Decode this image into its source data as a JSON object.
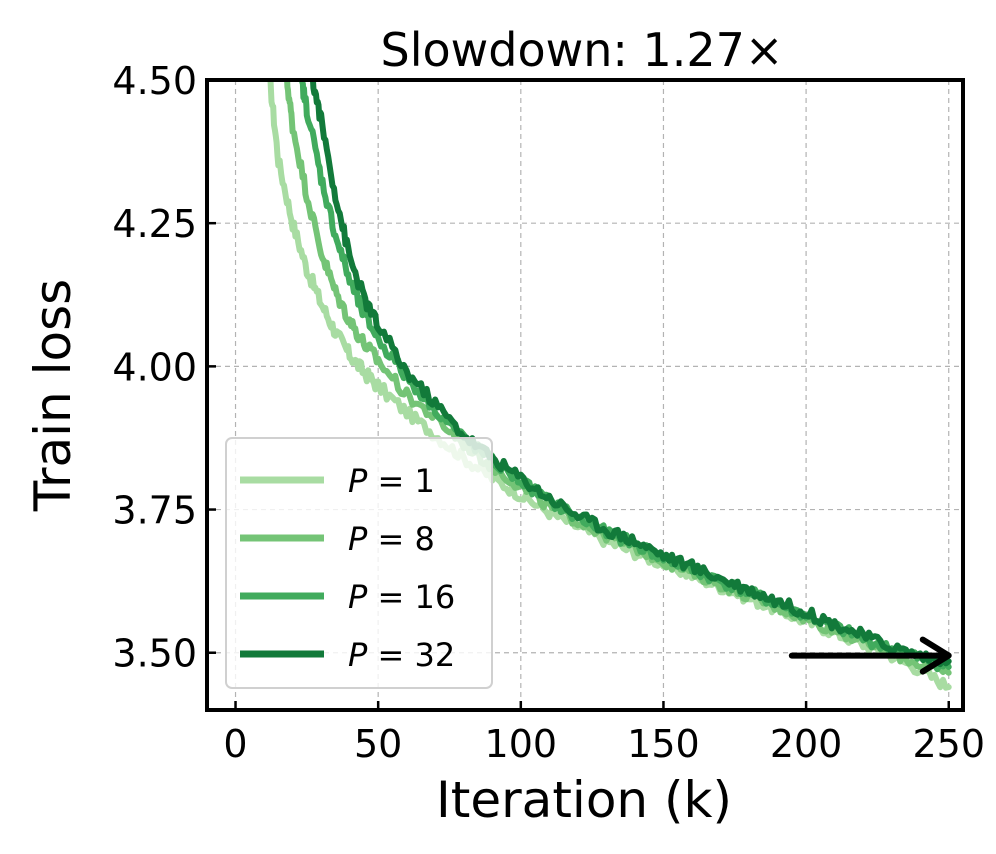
{
  "chart_data": {
    "type": "line",
    "title": "Slowdown: 1.27×",
    "xlabel": "Iteration (k)",
    "ylabel": "Train loss",
    "xlim": [
      -10,
      255
    ],
    "ylim": [
      3.4,
      4.5
    ],
    "xticks": [
      0,
      50,
      100,
      150,
      200,
      250
    ],
    "yticks": [
      3.5,
      3.75,
      4.0,
      4.25,
      4.5
    ],
    "ytick_labels": [
      "3.50",
      "3.75",
      "4.00",
      "4.25",
      "4.50"
    ],
    "grid": true,
    "legend_position": "lower-left",
    "series": [
      {
        "name": "P = 1",
        "legend_var": "P",
        "legend_value": "1",
        "color": "#a8dca2",
        "points": [
          [
            12,
            4.5
          ],
          [
            15,
            4.36
          ],
          [
            20,
            4.25
          ],
          [
            25,
            4.17
          ],
          [
            30,
            4.11
          ],
          [
            35,
            4.06
          ],
          [
            40,
            4.02
          ],
          [
            45,
            3.99
          ],
          [
            50,
            3.965
          ],
          [
            60,
            3.92
          ],
          [
            70,
            3.88
          ],
          [
            80,
            3.84
          ],
          [
            90,
            3.805
          ],
          [
            100,
            3.775
          ],
          [
            110,
            3.745
          ],
          [
            120,
            3.72
          ],
          [
            130,
            3.695
          ],
          [
            140,
            3.675
          ],
          [
            150,
            3.655
          ],
          [
            160,
            3.635
          ],
          [
            170,
            3.615
          ],
          [
            180,
            3.595
          ],
          [
            190,
            3.575
          ],
          [
            200,
            3.555
          ],
          [
            210,
            3.535
          ],
          [
            220,
            3.515
          ],
          [
            230,
            3.495
          ],
          [
            240,
            3.47
          ],
          [
            250,
            3.44
          ]
        ]
      },
      {
        "name": "P = 8",
        "legend_var": "P",
        "legend_value": "8",
        "color": "#74c476",
        "points": [
          [
            18,
            4.5
          ],
          [
            20,
            4.42
          ],
          [
            25,
            4.3
          ],
          [
            30,
            4.2
          ],
          [
            35,
            4.13
          ],
          [
            40,
            4.08
          ],
          [
            45,
            4.04
          ],
          [
            50,
            4.01
          ],
          [
            60,
            3.95
          ],
          [
            70,
            3.91
          ],
          [
            80,
            3.865
          ],
          [
            90,
            3.825
          ],
          [
            100,
            3.79
          ],
          [
            110,
            3.755
          ],
          [
            120,
            3.73
          ],
          [
            130,
            3.705
          ],
          [
            140,
            3.685
          ],
          [
            150,
            3.66
          ],
          [
            160,
            3.64
          ],
          [
            170,
            3.62
          ],
          [
            180,
            3.6
          ],
          [
            190,
            3.58
          ],
          [
            200,
            3.56
          ],
          [
            210,
            3.54
          ],
          [
            220,
            3.52
          ],
          [
            230,
            3.5
          ],
          [
            240,
            3.48
          ],
          [
            250,
            3.465
          ]
        ]
      },
      {
        "name": "P = 16",
        "legend_var": "P",
        "legend_value": "16",
        "color": "#41ab5d",
        "points": [
          [
            23,
            4.5
          ],
          [
            25,
            4.45
          ],
          [
            30,
            4.33
          ],
          [
            35,
            4.23
          ],
          [
            40,
            4.15
          ],
          [
            45,
            4.09
          ],
          [
            50,
            4.05
          ],
          [
            60,
            3.98
          ],
          [
            70,
            3.925
          ],
          [
            80,
            3.875
          ],
          [
            90,
            3.835
          ],
          [
            100,
            3.8
          ],
          [
            110,
            3.765
          ],
          [
            120,
            3.735
          ],
          [
            130,
            3.71
          ],
          [
            140,
            3.69
          ],
          [
            150,
            3.665
          ],
          [
            160,
            3.645
          ],
          [
            170,
            3.625
          ],
          [
            180,
            3.605
          ],
          [
            190,
            3.585
          ],
          [
            200,
            3.565
          ],
          [
            210,
            3.545
          ],
          [
            220,
            3.525
          ],
          [
            230,
            3.505
          ],
          [
            240,
            3.49
          ],
          [
            250,
            3.475
          ]
        ]
      },
      {
        "name": "P = 32",
        "legend_var": "P",
        "legend_value": "32",
        "color": "#127a3a",
        "points": [
          [
            27,
            4.5
          ],
          [
            30,
            4.43
          ],
          [
            35,
            4.3
          ],
          [
            40,
            4.19
          ],
          [
            45,
            4.12
          ],
          [
            50,
            4.07
          ],
          [
            60,
            3.99
          ],
          [
            70,
            3.935
          ],
          [
            80,
            3.88
          ],
          [
            90,
            3.84
          ],
          [
            100,
            3.805
          ],
          [
            110,
            3.77
          ],
          [
            120,
            3.74
          ],
          [
            130,
            3.715
          ],
          [
            140,
            3.695
          ],
          [
            150,
            3.67
          ],
          [
            160,
            3.65
          ],
          [
            170,
            3.63
          ],
          [
            180,
            3.61
          ],
          [
            190,
            3.59
          ],
          [
            200,
            3.57
          ],
          [
            210,
            3.55
          ],
          [
            220,
            3.53
          ],
          [
            230,
            3.51
          ],
          [
            240,
            3.495
          ],
          [
            250,
            3.485
          ]
        ]
      }
    ],
    "annotation": {
      "type": "arrow",
      "from": [
        195,
        3.495
      ],
      "to": [
        250,
        3.495
      ],
      "color": "#000000"
    }
  }
}
